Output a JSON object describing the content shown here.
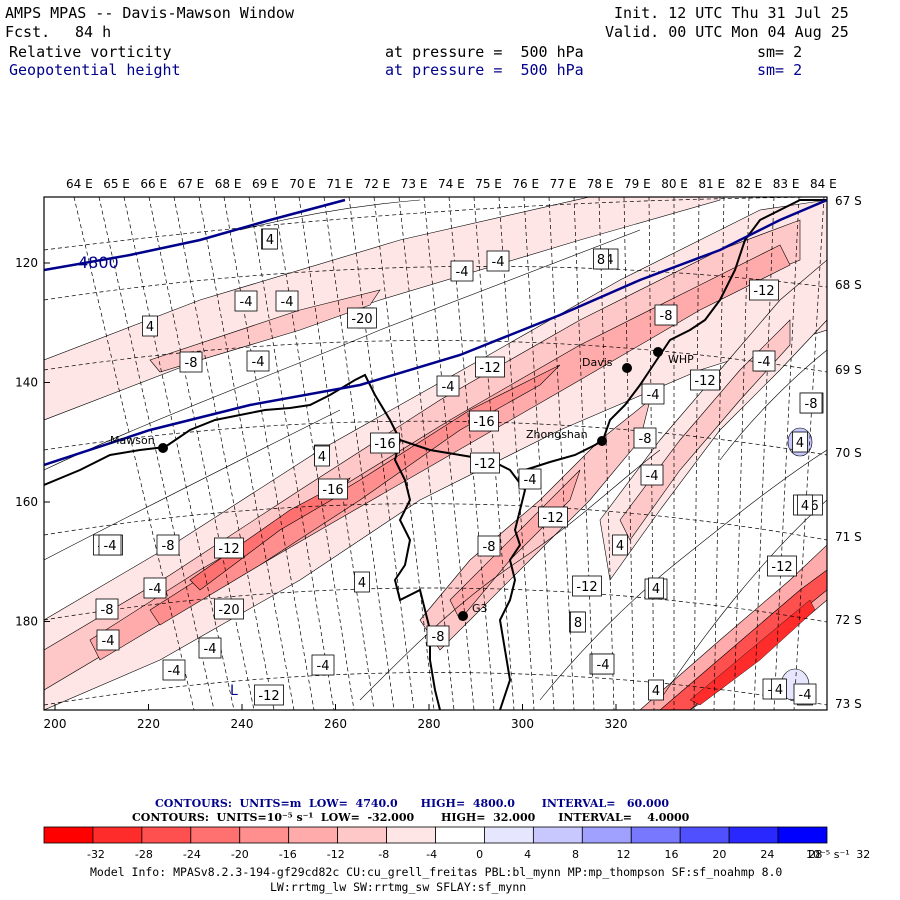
{
  "header": {
    "title": "AMPS MPAS -- Davis-Mawson Window",
    "forecast_label": "Fcst.",
    "forecast_hours": "84 h",
    "init": "Init. 12 UTC Thu 31 Jul 25",
    "valid": "Valid. 00 UTC Mon 04 Aug 25",
    "fields": [
      {
        "name": "Relative vorticity",
        "pressure": "at pressure =  500 hPa",
        "sm": "sm= 2",
        "color": "#000000"
      },
      {
        "name": "Geopotential height",
        "pressure": "at pressure =  500 hPa",
        "sm": "sm= 2",
        "color": "#00008b"
      }
    ]
  },
  "map": {
    "top_lon_labels": [
      "64 E",
      "65 E",
      "66 E",
      "67 E",
      "68 E",
      "69 E",
      "70 E",
      "71 E",
      "72 E",
      "73 E",
      "74 E",
      "75 E",
      "76 E",
      "77 E",
      "78 E",
      "79 E",
      "80 E",
      "81 E",
      "82 E",
      "83 E",
      "84 E"
    ],
    "right_lat_labels": [
      "67 S",
      "68 S",
      "69 S",
      "70 S",
      "71 S",
      "72 S",
      "73 S"
    ],
    "x_ticks": [
      "200",
      "220",
      "240",
      "260",
      "280",
      "300",
      "320"
    ],
    "y_ticks": [
      "120",
      "140",
      "160",
      "180"
    ],
    "stations": [
      {
        "name": "Mawson"
      },
      {
        "name": "Davis"
      },
      {
        "name": "WHP"
      },
      {
        "name": "Zhongshan"
      },
      {
        "name": "G3"
      }
    ],
    "height_contour_label": "4800",
    "low_marker": "L",
    "contour_labels": [
      "4",
      "-4",
      "4",
      "-4",
      "-4",
      "-4",
      "4",
      "-4",
      "-8",
      "-4",
      "4",
      "-4",
      "-4",
      "-4",
      "-12",
      "-16",
      "-8",
      "-12",
      "-8",
      "-4",
      "4",
      "-16",
      "-12",
      "-16",
      "-8",
      "-12",
      "-4",
      "4",
      "-20",
      "-4",
      "4",
      "4",
      "-16",
      "-4",
      "-12",
      "-8",
      "-12",
      "-8",
      "-4",
      "-12",
      "-12",
      "-8",
      "-16",
      "-8",
      "-4",
      "-12",
      "-4",
      "4",
      "4",
      "-4",
      "-4",
      "-20",
      "8",
      "4",
      "-8",
      "-4",
      "4",
      "-4",
      "4",
      "4",
      "8",
      "-4",
      "-4",
      "4",
      "4"
    ]
  },
  "legend": {
    "line1": "CONTOURS:  UNITS=m  LOW=  4740.0      HIGH=  4800.0       INTERVAL=   60.000",
    "line2": "CONTOURS:  UNITS=10⁻⁵ s⁻¹  LOW=  -32.000       HIGH=  32.000      INTERVAL=    4.0000",
    "tick_labels": [
      "-32",
      "-28",
      "-24",
      "-20",
      "-16",
      "-12",
      "-8",
      "-4",
      "0",
      "4",
      "8",
      "12",
      "16",
      "20",
      "24",
      "28",
      "32"
    ],
    "units": "10⁻⁵ s⁻¹",
    "colors": [
      "#ff0000",
      "#ff2c2c",
      "#ff5050",
      "#ff7070",
      "#ff8e8e",
      "#ffabab",
      "#ffc8c8",
      "#ffe6e6",
      "#ffffff",
      "#ffffff",
      "#e6e6ff",
      "#c8c8ff",
      "#a0a0ff",
      "#7878ff",
      "#5050ff",
      "#2828ff",
      "#0000ff"
    ]
  },
  "footer": {
    "line1": "Model Info: MPASv8.2.3-194-gf29cd82c CU:cu_grell_freitas PBL:bl_mynn MP:mp_thompson SF:sf_noahmp 8.0",
    "line2": "LW:rrtmg_lw SW:rrtmg_sw SFLAY:sf_mynn"
  }
}
